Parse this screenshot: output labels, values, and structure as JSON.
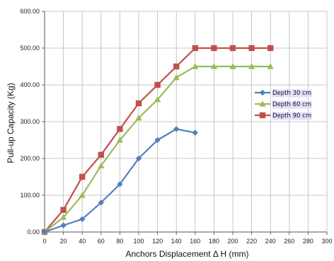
{
  "chart_data": {
    "type": "line",
    "title": "",
    "xlabel": "Anchors Displacement  Δ H (mm)",
    "ylabel": "Pull-up Capacity (Kg)",
    "xlim": [
      0,
      300
    ],
    "ylim": [
      0,
      600
    ],
    "x_ticks": [
      "0",
      "20",
      "40",
      "60",
      "80",
      "100",
      "120",
      "140",
      "160",
      "180",
      "200",
      "220",
      "240",
      "260",
      "280",
      "300"
    ],
    "y_ticks": [
      "0.00",
      "100.00",
      "200.00",
      "300.00",
      "400.00",
      "500.00",
      "600.00"
    ],
    "grid": true,
    "legend_position": "right",
    "series": [
      {
        "name": "Depth 30 cm",
        "color": "#4F81BD",
        "marker": "diamond",
        "x": [
          0,
          20,
          40,
          60,
          80,
          100,
          120,
          140,
          160
        ],
        "y": [
          0,
          18,
          35,
          80,
          130,
          200,
          250,
          280,
          270
        ]
      },
      {
        "name": "Depth 60 cm",
        "color": "#9BBB59",
        "marker": "triangle",
        "x": [
          0,
          20,
          40,
          60,
          80,
          100,
          120,
          140,
          160,
          180,
          200,
          220,
          240
        ],
        "y": [
          0,
          40,
          100,
          180,
          250,
          310,
          360,
          420,
          450,
          450,
          450,
          450,
          450
        ]
      },
      {
        "name": "Depth 90 cm",
        "color": "#C0504D",
        "marker": "square",
        "x": [
          0,
          20,
          40,
          60,
          80,
          100,
          120,
          140,
          160,
          180,
          200,
          220,
          240
        ],
        "y": [
          0,
          60,
          150,
          210,
          280,
          350,
          400,
          450,
          500,
          500,
          500,
          500,
          500
        ]
      }
    ]
  }
}
